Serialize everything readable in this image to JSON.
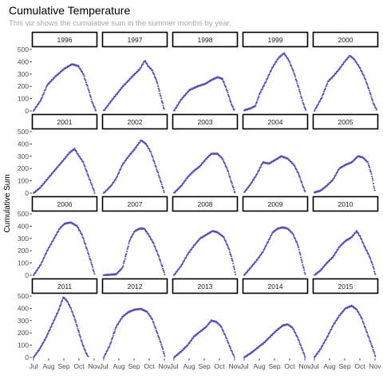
{
  "title": "Cumulative Temperature",
  "subtitle": "This viz shows the cumulative sum in the summer months by year.",
  "chart_data": {
    "type": "scatter",
    "facet_by": "year",
    "ylabel": "Cumulative Sum",
    "xlabel": "",
    "x_domain": [
      "Jul 1",
      "Nov 10"
    ],
    "x_ticks": [
      "Jul",
      "Aug",
      "Sep",
      "Oct",
      "Nov"
    ],
    "ylim": [
      0,
      500
    ],
    "y_ticks": [
      0,
      100,
      200,
      300,
      400,
      500
    ],
    "point_color": "#5B4DB2",
    "strip_fill": "#ffffff",
    "strip_border": "#000000",
    "grid": false,
    "panels": [
      {
        "year": "1996",
        "points": [
          [
            0,
            0
          ],
          [
            0.12,
            90
          ],
          [
            0.22,
            210
          ],
          [
            0.35,
            280
          ],
          [
            0.5,
            345
          ],
          [
            0.62,
            380
          ],
          [
            0.72,
            365
          ],
          [
            0.8,
            300
          ],
          [
            0.88,
            180
          ],
          [
            0.95,
            60
          ],
          [
            1.0,
            5
          ]
        ]
      },
      {
        "year": "1997",
        "points": [
          [
            0,
            0
          ],
          [
            0.15,
            100
          ],
          [
            0.3,
            195
          ],
          [
            0.45,
            275
          ],
          [
            0.58,
            340
          ],
          [
            0.66,
            410
          ],
          [
            0.72,
            360
          ],
          [
            0.78,
            330
          ],
          [
            0.85,
            245
          ],
          [
            0.92,
            110
          ],
          [
            0.97,
            15
          ]
        ]
      },
      {
        "year": "1998",
        "points": [
          [
            0,
            0
          ],
          [
            0.12,
            95
          ],
          [
            0.25,
            170
          ],
          [
            0.38,
            200
          ],
          [
            0.5,
            220
          ],
          [
            0.6,
            250
          ],
          [
            0.7,
            275
          ],
          [
            0.78,
            260
          ],
          [
            0.85,
            170
          ],
          [
            0.92,
            60
          ],
          [
            0.97,
            5
          ]
        ]
      },
      {
        "year": "1999",
        "points": [
          [
            0,
            5
          ],
          [
            0.1,
            20
          ],
          [
            0.18,
            40
          ],
          [
            0.25,
            140
          ],
          [
            0.35,
            240
          ],
          [
            0.45,
            350
          ],
          [
            0.55,
            430
          ],
          [
            0.64,
            470
          ],
          [
            0.72,
            410
          ],
          [
            0.8,
            310
          ],
          [
            0.88,
            180
          ],
          [
            0.95,
            60
          ],
          [
            0.99,
            5
          ]
        ]
      },
      {
        "year": "2000",
        "points": [
          [
            0,
            0
          ],
          [
            0.12,
            110
          ],
          [
            0.22,
            240
          ],
          [
            0.3,
            280
          ],
          [
            0.4,
            340
          ],
          [
            0.5,
            410
          ],
          [
            0.57,
            450
          ],
          [
            0.64,
            420
          ],
          [
            0.72,
            360
          ],
          [
            0.8,
            280
          ],
          [
            0.88,
            170
          ],
          [
            0.95,
            60
          ],
          [
            1.0,
            10
          ]
        ]
      },
      {
        "year": "2001",
        "points": [
          [
            0,
            0
          ],
          [
            0.1,
            40
          ],
          [
            0.2,
            100
          ],
          [
            0.3,
            160
          ],
          [
            0.4,
            220
          ],
          [
            0.5,
            280
          ],
          [
            0.58,
            330
          ],
          [
            0.66,
            360
          ],
          [
            0.72,
            310
          ],
          [
            0.8,
            250
          ],
          [
            0.88,
            140
          ],
          [
            0.95,
            50
          ],
          [
            0.98,
            5
          ]
        ]
      },
      {
        "year": "2002",
        "points": [
          [
            0,
            0
          ],
          [
            0.12,
            60
          ],
          [
            0.2,
            120
          ],
          [
            0.3,
            230
          ],
          [
            0.4,
            300
          ],
          [
            0.5,
            360
          ],
          [
            0.6,
            430
          ],
          [
            0.68,
            400
          ],
          [
            0.76,
            330
          ],
          [
            0.84,
            210
          ],
          [
            0.92,
            90
          ],
          [
            0.97,
            10
          ]
        ]
      },
      {
        "year": "2003",
        "points": [
          [
            0,
            0
          ],
          [
            0.12,
            60
          ],
          [
            0.22,
            130
          ],
          [
            0.32,
            180
          ],
          [
            0.42,
            220
          ],
          [
            0.52,
            280
          ],
          [
            0.6,
            320
          ],
          [
            0.7,
            320
          ],
          [
            0.78,
            280
          ],
          [
            0.86,
            190
          ],
          [
            0.93,
            80
          ],
          [
            0.98,
            5
          ]
        ]
      },
      {
        "year": "2004",
        "points": [
          [
            0,
            5
          ],
          [
            0.1,
            70
          ],
          [
            0.2,
            150
          ],
          [
            0.3,
            250
          ],
          [
            0.4,
            240
          ],
          [
            0.5,
            270
          ],
          [
            0.6,
            300
          ],
          [
            0.7,
            280
          ],
          [
            0.8,
            230
          ],
          [
            0.88,
            150
          ],
          [
            0.94,
            60
          ],
          [
            0.98,
            10
          ]
        ]
      },
      {
        "year": "2005",
        "points": [
          [
            0,
            5
          ],
          [
            0.1,
            20
          ],
          [
            0.2,
            60
          ],
          [
            0.3,
            110
          ],
          [
            0.4,
            200
          ],
          [
            0.5,
            230
          ],
          [
            0.6,
            250
          ],
          [
            0.7,
            300
          ],
          [
            0.78,
            290
          ],
          [
            0.86,
            250
          ],
          [
            0.92,
            150
          ],
          [
            0.97,
            20
          ]
        ]
      },
      {
        "year": "2006",
        "points": [
          [
            0,
            0
          ],
          [
            0.12,
            90
          ],
          [
            0.22,
            200
          ],
          [
            0.32,
            290
          ],
          [
            0.42,
            380
          ],
          [
            0.5,
            420
          ],
          [
            0.6,
            430
          ],
          [
            0.7,
            400
          ],
          [
            0.78,
            330
          ],
          [
            0.86,
            210
          ],
          [
            0.93,
            100
          ],
          [
            0.98,
            10
          ]
        ]
      },
      {
        "year": "2007",
        "points": [
          [
            0,
            0
          ],
          [
            0.1,
            5
          ],
          [
            0.2,
            8
          ],
          [
            0.3,
            60
          ],
          [
            0.35,
            150
          ],
          [
            0.42,
            290
          ],
          [
            0.5,
            360
          ],
          [
            0.58,
            380
          ],
          [
            0.65,
            380
          ],
          [
            0.72,
            330
          ],
          [
            0.8,
            260
          ],
          [
            0.88,
            160
          ],
          [
            0.94,
            70
          ],
          [
            0.98,
            10
          ]
        ]
      },
      {
        "year": "2008",
        "points": [
          [
            0,
            0
          ],
          [
            0.12,
            80
          ],
          [
            0.22,
            170
          ],
          [
            0.32,
            240
          ],
          [
            0.42,
            300
          ],
          [
            0.52,
            330
          ],
          [
            0.62,
            360
          ],
          [
            0.7,
            350
          ],
          [
            0.8,
            310
          ],
          [
            0.88,
            220
          ],
          [
            0.94,
            120
          ],
          [
            0.99,
            10
          ]
        ]
      },
      {
        "year": "2009",
        "points": [
          [
            0,
            0
          ],
          [
            0.1,
            60
          ],
          [
            0.2,
            120
          ],
          [
            0.3,
            190
          ],
          [
            0.38,
            270
          ],
          [
            0.46,
            350
          ],
          [
            0.54,
            380
          ],
          [
            0.62,
            390
          ],
          [
            0.7,
            380
          ],
          [
            0.78,
            340
          ],
          [
            0.86,
            250
          ],
          [
            0.93,
            110
          ],
          [
            0.98,
            10
          ]
        ]
      },
      {
        "year": "2010",
        "points": [
          [
            0,
            0
          ],
          [
            0.1,
            40
          ],
          [
            0.2,
            100
          ],
          [
            0.3,
            150
          ],
          [
            0.4,
            230
          ],
          [
            0.5,
            280
          ],
          [
            0.6,
            310
          ],
          [
            0.68,
            360
          ],
          [
            0.74,
            310
          ],
          [
            0.8,
            240
          ],
          [
            0.88,
            160
          ],
          [
            0.94,
            80
          ],
          [
            0.98,
            5
          ]
        ]
      },
      {
        "year": "2011",
        "points": [
          [
            0,
            0
          ],
          [
            0.1,
            70
          ],
          [
            0.2,
            160
          ],
          [
            0.3,
            270
          ],
          [
            0.4,
            380
          ],
          [
            0.48,
            490
          ],
          [
            0.54,
            460
          ],
          [
            0.6,
            400
          ],
          [
            0.66,
            320
          ],
          [
            0.72,
            220
          ],
          [
            0.78,
            120
          ],
          [
            0.84,
            40
          ],
          [
            0.88,
            5
          ]
        ]
      },
      {
        "year": "2012",
        "points": [
          [
            0,
            0
          ],
          [
            0.1,
            100
          ],
          [
            0.2,
            250
          ],
          [
            0.3,
            330
          ],
          [
            0.4,
            370
          ],
          [
            0.5,
            390
          ],
          [
            0.6,
            395
          ],
          [
            0.7,
            370
          ],
          [
            0.78,
            310
          ],
          [
            0.86,
            200
          ],
          [
            0.93,
            100
          ],
          [
            0.98,
            10
          ]
        ]
      },
      {
        "year": "2013",
        "points": [
          [
            0,
            0
          ],
          [
            0.12,
            50
          ],
          [
            0.22,
            100
          ],
          [
            0.32,
            170
          ],
          [
            0.42,
            210
          ],
          [
            0.52,
            250
          ],
          [
            0.6,
            300
          ],
          [
            0.68,
            290
          ],
          [
            0.76,
            250
          ],
          [
            0.84,
            160
          ],
          [
            0.92,
            60
          ],
          [
            0.97,
            5
          ]
        ]
      },
      {
        "year": "2014",
        "points": [
          [
            0,
            0
          ],
          [
            0.12,
            40
          ],
          [
            0.22,
            80
          ],
          [
            0.32,
            120
          ],
          [
            0.42,
            170
          ],
          [
            0.52,
            220
          ],
          [
            0.62,
            260
          ],
          [
            0.7,
            270
          ],
          [
            0.78,
            240
          ],
          [
            0.86,
            160
          ],
          [
            0.93,
            70
          ],
          [
            0.98,
            5
          ]
        ]
      },
      {
        "year": "2015",
        "points": [
          [
            0,
            0
          ],
          [
            0.1,
            70
          ],
          [
            0.2,
            160
          ],
          [
            0.3,
            260
          ],
          [
            0.4,
            340
          ],
          [
            0.5,
            400
          ],
          [
            0.6,
            420
          ],
          [
            0.68,
            390
          ],
          [
            0.76,
            320
          ],
          [
            0.84,
            210
          ],
          [
            0.92,
            100
          ],
          [
            0.98,
            10
          ]
        ]
      }
    ]
  }
}
